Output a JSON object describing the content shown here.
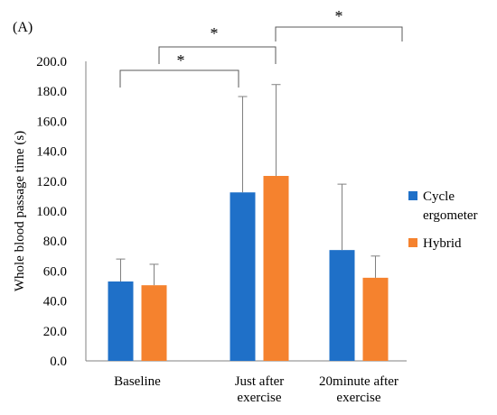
{
  "panel_label": "(A)",
  "chart_data": {
    "type": "bar",
    "ylabel": "Whole blood passage time (s)",
    "xlabel": "",
    "ylim": [
      0,
      200
    ],
    "y_ticks": [
      "0.0",
      "20.0",
      "40.0",
      "60.0",
      "80.0",
      "100.0",
      "120.0",
      "140.0",
      "160.0",
      "180.0",
      "200.0"
    ],
    "categories": [
      [
        "Baseline"
      ],
      [
        "Just after",
        "exercise"
      ],
      [
        "20minute after",
        "exercise"
      ]
    ],
    "series": [
      {
        "name": "Cycle ergometer",
        "legend_lines": [
          "Cycle",
          "ergometer"
        ],
        "color": "#1F70C8",
        "values": [
          53,
          112.5,
          74
        ],
        "error": [
          15,
          64,
          44
        ]
      },
      {
        "name": "Hybrid",
        "legend_lines": [
          "Hybrid"
        ],
        "color": "#F5822E",
        "values": [
          50.5,
          123.5,
          55.5
        ],
        "error": [
          14,
          61,
          14.5
        ]
      }
    ],
    "significance": [
      {
        "from": "Baseline",
        "to": "Just after exercise",
        "label": "*"
      },
      {
        "from": "Baseline–Just after (midpoint)",
        "to": "Just after (group center)",
        "label": "*"
      },
      {
        "from": "Just after exercise",
        "to": "20minute after exercise",
        "label": "*"
      }
    ],
    "grid": false,
    "legend_position": "right"
  }
}
